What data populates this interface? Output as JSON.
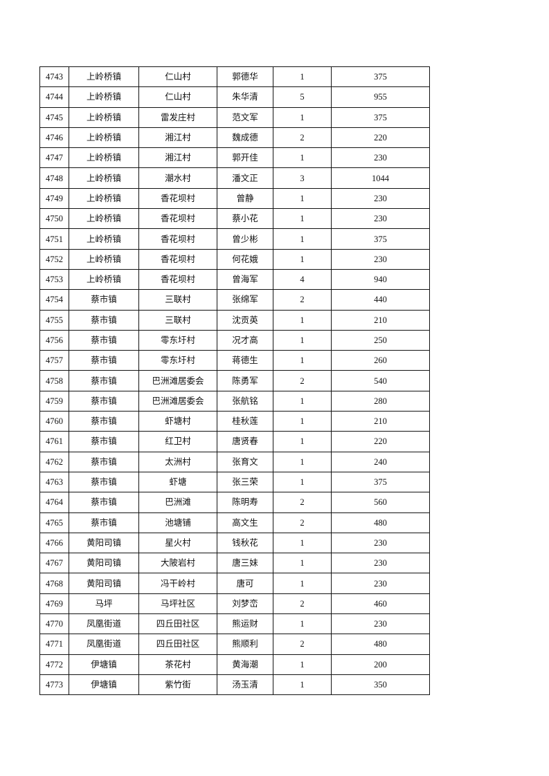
{
  "rows": [
    [
      "4743",
      "上岭桥镇",
      "仁山村",
      "郭德华",
      "1",
      "375"
    ],
    [
      "4744",
      "上岭桥镇",
      "仁山村",
      "朱华清",
      "5",
      "955"
    ],
    [
      "4745",
      "上岭桥镇",
      "雷发庄村",
      "范文军",
      "1",
      "375"
    ],
    [
      "4746",
      "上岭桥镇",
      "湘江村",
      "魏成德",
      "2",
      "220"
    ],
    [
      "4747",
      "上岭桥镇",
      "湘江村",
      "郭开佳",
      "1",
      "230"
    ],
    [
      "4748",
      "上岭桥镇",
      "潮水村",
      "潘文正",
      "3",
      "1044"
    ],
    [
      "4749",
      "上岭桥镇",
      "香花坝村",
      "曾静",
      "1",
      "230"
    ],
    [
      "4750",
      "上岭桥镇",
      "香花坝村",
      "蔡小花",
      "1",
      "230"
    ],
    [
      "4751",
      "上岭桥镇",
      "香花坝村",
      "曾少彬",
      "1",
      "375"
    ],
    [
      "4752",
      "上岭桥镇",
      "香花坝村",
      "何花娥",
      "1",
      "230"
    ],
    [
      "4753",
      "上岭桥镇",
      "香花坝村",
      "曾海军",
      "4",
      "940"
    ],
    [
      "4754",
      "蔡市镇",
      "三联村",
      "张绵军",
      "2",
      "440"
    ],
    [
      "4755",
      "蔡市镇",
      "三联村",
      "沈贡英",
      "1",
      "210"
    ],
    [
      "4756",
      "蔡市镇",
      "零东圩村",
      "况才高",
      "1",
      "250"
    ],
    [
      "4757",
      "蔡市镇",
      "零东圩村",
      "蒋德生",
      "1",
      "260"
    ],
    [
      "4758",
      "蔡市镇",
      "巴洲滩居委会",
      "陈勇军",
      "2",
      "540"
    ],
    [
      "4759",
      "蔡市镇",
      "巴洲滩居委会",
      "张航铭",
      "1",
      "280"
    ],
    [
      "4760",
      "蔡市镇",
      "虾塘村",
      "桂秋莲",
      "1",
      "210"
    ],
    [
      "4761",
      "蔡市镇",
      "红卫村",
      "唐贤春",
      "1",
      "220"
    ],
    [
      "4762",
      "蔡市镇",
      "太洲村",
      "张育文",
      "1",
      "240"
    ],
    [
      "4763",
      "蔡市镇",
      "虾塘",
      "张三荣",
      "1",
      "375"
    ],
    [
      "4764",
      "蔡市镇",
      "巴洲滩",
      "陈明寿",
      "2",
      "560"
    ],
    [
      "4765",
      "蔡市镇",
      "池塘铺",
      "高文生",
      "2",
      "480"
    ],
    [
      "4766",
      "黄阳司镇",
      "星火村",
      "钱秋花",
      "1",
      "230"
    ],
    [
      "4767",
      "黄阳司镇",
      "大陂岩村",
      "唐三妹",
      "1",
      "230"
    ],
    [
      "4768",
      "黄阳司镇",
      "冯干岭村",
      "唐可",
      "1",
      "230"
    ],
    [
      "4769",
      "马坪",
      "马坪社区",
      "刘梦峦",
      "2",
      "460"
    ],
    [
      "4770",
      "凤凰街道",
      "四丘田社区",
      "熊运财",
      "1",
      "230"
    ],
    [
      "4771",
      "凤凰街道",
      "四丘田社区",
      "熊顺利",
      "2",
      "480"
    ],
    [
      "4772",
      "伊塘镇",
      "茶花村",
      "黄海潮",
      "1",
      "200"
    ],
    [
      "4773",
      "伊塘镇",
      "紫竹街",
      "汤玉清",
      "1",
      "350"
    ]
  ]
}
